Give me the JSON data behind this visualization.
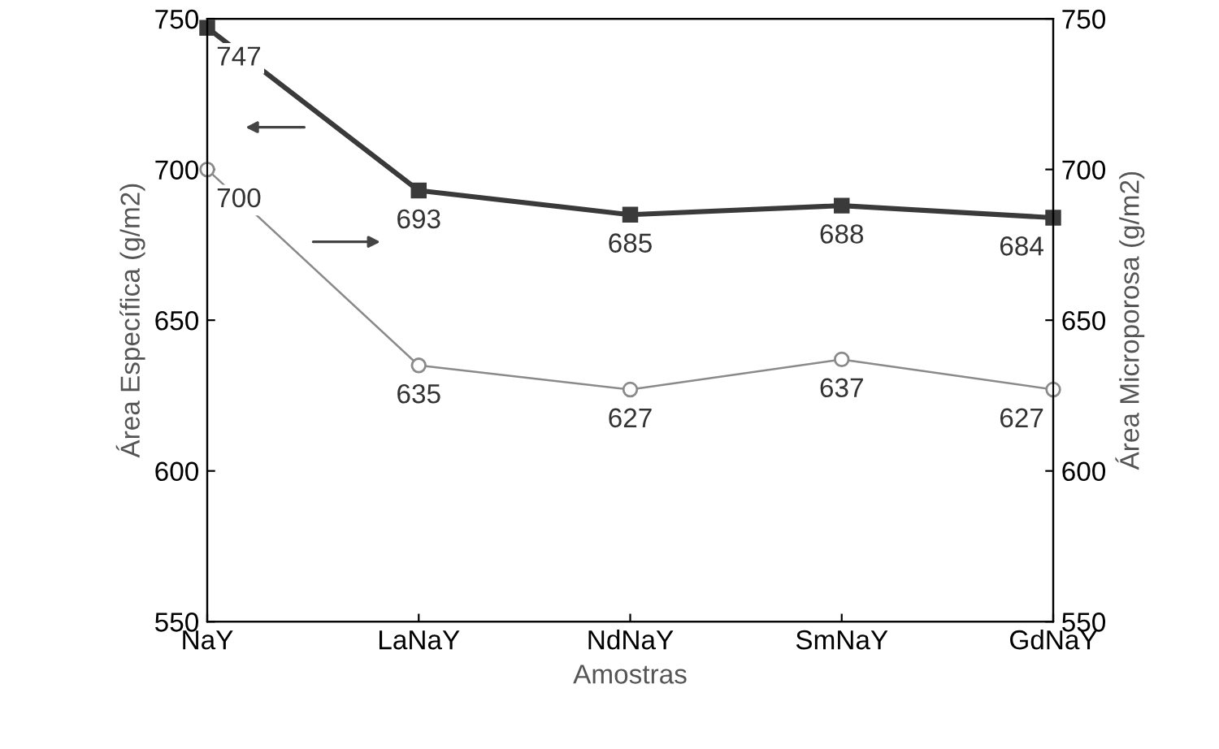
{
  "chart_data": {
    "type": "line",
    "xlabel": "Amostras",
    "ylabel": "Área Específica (g/m2)",
    "y2label": "Área Microporosa (g/m2)",
    "categories": [
      "NaY",
      "LaNaY",
      "NdNaY",
      "SmNaY",
      "GdNaY"
    ],
    "series": [
      {
        "color": "#3a3a3a",
        "marker": "square",
        "values": [
          747,
          693,
          685,
          688,
          684
        ]
      },
      {
        "color": "#8a8a8a",
        "marker": "circle",
        "axis": "y2",
        "values": [
          700,
          635,
          627,
          637,
          627
        ]
      }
    ],
    "ylim": [
      550,
      750
    ],
    "yticks": [
      550,
      600,
      650,
      700,
      750
    ],
    "y2lim": [
      550,
      750
    ],
    "y2ticks": [
      550,
      600,
      650,
      700,
      750
    ],
    "data_labels": true,
    "grid": false,
    "legend": false
  }
}
